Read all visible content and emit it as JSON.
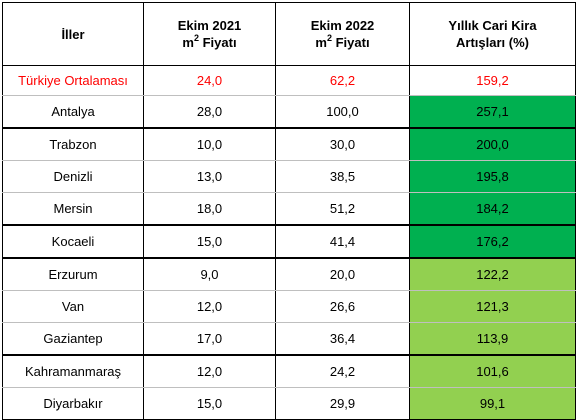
{
  "table": {
    "headers": {
      "col1": "İller",
      "col2_line1": "Ekim 2021",
      "col2_m": "m",
      "col2_sup": "2",
      "col2_rest": " Fiyatı",
      "col3_line1": "Ekim 2022",
      "col3_m": "m",
      "col3_sup": "2",
      "col3_rest": " Fiyatı",
      "col4_line1": "Yıllık Cari Kira",
      "col4_line2": "Artışları (%)"
    },
    "average": {
      "name": "Türkiye Ortalaması",
      "oct2021": "24,0",
      "oct2022": "62,2",
      "increase": "159,2",
      "color": "#ff0000"
    },
    "rows": [
      {
        "name": "Antalya",
        "oct2021": "28,0",
        "oct2022": "100,0",
        "increase": "257,1",
        "highlight": "#00b050"
      },
      {
        "name": "Trabzon",
        "oct2021": "10,0",
        "oct2022": "30,0",
        "increase": "200,0",
        "highlight": "#00b050"
      },
      {
        "name": "Denizli",
        "oct2021": "13,0",
        "oct2022": "38,5",
        "increase": "195,8",
        "highlight": "#00b050"
      },
      {
        "name": "Mersin",
        "oct2021": "18,0",
        "oct2022": "51,2",
        "increase": "184,2",
        "highlight": "#00b050"
      },
      {
        "name": "Kocaeli",
        "oct2021": "15,0",
        "oct2022": "41,4",
        "increase": "176,2",
        "highlight": "#00b050"
      },
      {
        "name": "Erzurum",
        "oct2021": "9,0",
        "oct2022": "20,0",
        "increase": "122,2",
        "highlight": "#92d050"
      },
      {
        "name": "Van",
        "oct2021": "12,0",
        "oct2022": "26,6",
        "increase": "121,3",
        "highlight": "#92d050"
      },
      {
        "name": "Gaziantep",
        "oct2021": "17,0",
        "oct2022": "36,4",
        "increase": "113,9",
        "highlight": "#92d050"
      },
      {
        "name": "Kahramanmaraş",
        "oct2021": "12,0",
        "oct2022": "24,2",
        "increase": "101,6",
        "highlight": "#92d050"
      },
      {
        "name": "Diyarbakır",
        "oct2021": "15,0",
        "oct2022": "29,9",
        "increase": "99,1",
        "highlight": "#92d050"
      }
    ]
  }
}
